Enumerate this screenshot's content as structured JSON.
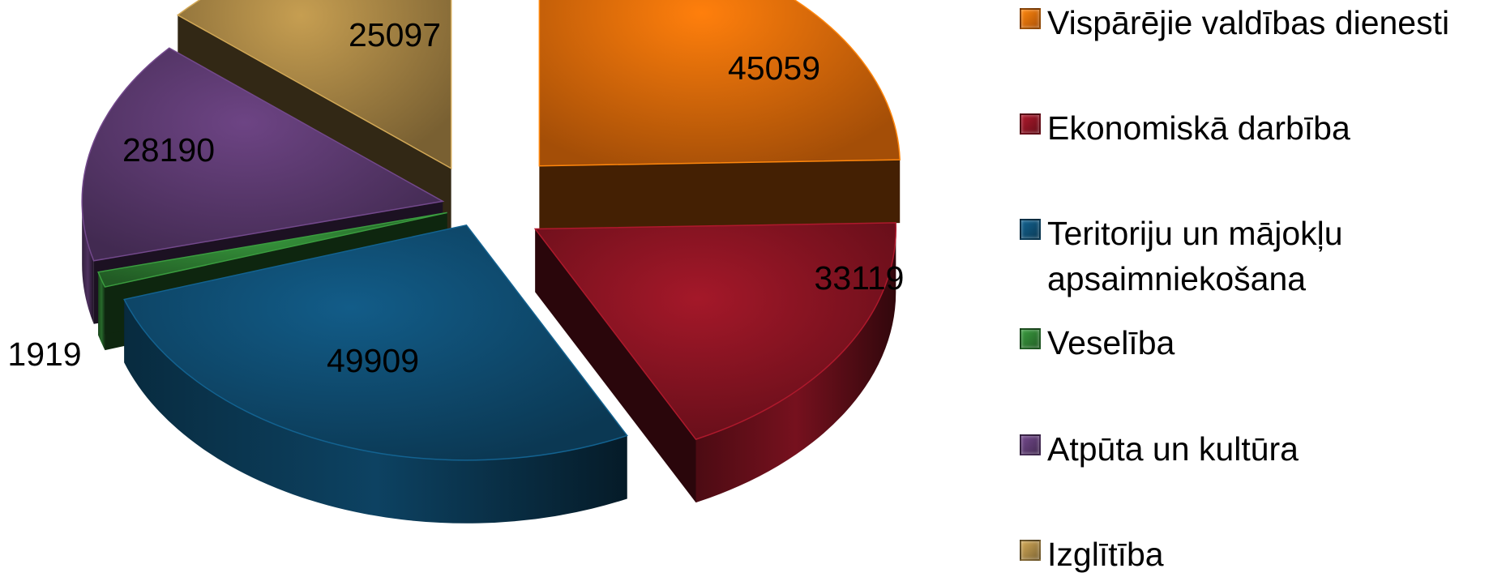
{
  "chart_data": {
    "type": "pie",
    "title": "",
    "style": "3d-exploded",
    "legend_position": "right",
    "categories": [
      "Vispārējie valdības dienesti",
      "Ekonomiskā darbība",
      "Teritoriju un mājokļu apsaimniekošana",
      "Veselība",
      "Atpūta un kultūra",
      "Izglītība"
    ],
    "values": [
      45059,
      33119,
      49909,
      1919,
      28190,
      25097
    ],
    "labels": [
      "45059",
      "33119",
      "49909",
      "1919",
      "28190",
      "25097"
    ],
    "colors": [
      "#E46C0A",
      "#8B1423",
      "#0F4E73",
      "#2E7D32",
      "#5C3A70",
      "#A88645"
    ]
  }
}
